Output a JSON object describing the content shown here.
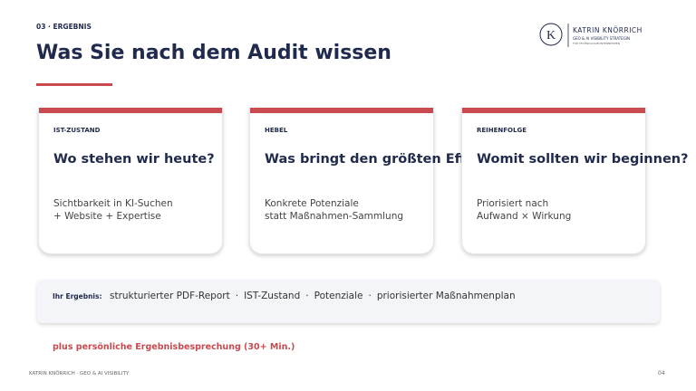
{
  "header": {
    "section": "03 · ERGEBNIS",
    "title": "Was Sie nach dem Audit wissen"
  },
  "logo": {
    "initial": "K",
    "name": "KATRIN KNÖRRICH",
    "tagline": "GEO & AI VISIBILITY STRATEGIN",
    "subline": "FÜR TECHNOLOGIEUNTERNEHMEN"
  },
  "cards": [
    {
      "label": "IST-ZUSTAND",
      "question": "Wo stehen wir heute?",
      "lines": [
        "Sichtbarkeit in KI-Suchen",
        "+ Website + Expertise"
      ]
    },
    {
      "label": "HEBEL",
      "question": "Was bringt den größten Effekt?",
      "lines": [
        "Konkrete Potenziale",
        "statt Maßnahmen-Sammlung"
      ]
    },
    {
      "label": "REIHENFOLGE",
      "question": "Womit sollten wir beginnen?",
      "lines": [
        "Priorisiert nach",
        "Aufwand × Wirkung"
      ]
    }
  ],
  "result": {
    "label": "Ihr Ergebnis:",
    "separator": "·",
    "items": [
      "strukturierter PDF-Report",
      "IST-Zustand",
      "Potenziale",
      "priorisierter Maßnahmenplan"
    ]
  },
  "extra": "plus persönliche Ergebnisbesprechung (30+ Min.)",
  "footer": {
    "text": "KATRIN KNÖRRICH · GEO & AI VISIBILITY",
    "page": "04"
  }
}
